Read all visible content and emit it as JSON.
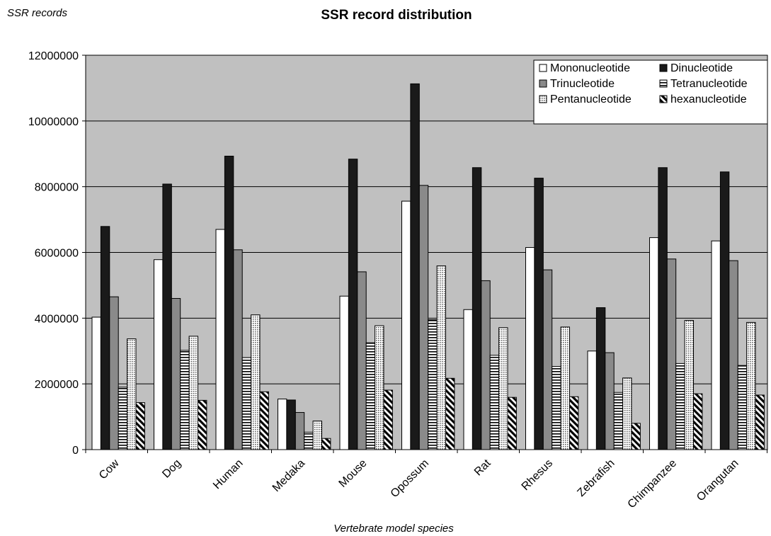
{
  "chart_data": {
    "type": "bar",
    "title": "SSR record distribution",
    "ylabel": "SSR records",
    "xlabel": "Vertebrate model species",
    "ylim": [
      0,
      12000000
    ],
    "yticks": [
      0,
      2000000,
      4000000,
      6000000,
      8000000,
      10000000,
      12000000
    ],
    "grid": true,
    "legend_position": "top-right",
    "categories": [
      "Cow",
      "Dog",
      "Human",
      "Medaka",
      "Mouse",
      "Opossum",
      "Rat",
      "Rhesus",
      "Zebrafish",
      "Chimpanzee",
      "Orangutan"
    ],
    "series": [
      {
        "name": "Mononucleotide",
        "fill": "white",
        "values": [
          4030000,
          5780000,
          6700000,
          1540000,
          4670000,
          7560000,
          4260000,
          6150000,
          3000000,
          6450000,
          6350000
        ]
      },
      {
        "name": "Dinucleotide",
        "fill": "black",
        "values": [
          6790000,
          8080000,
          8930000,
          1510000,
          8840000,
          11130000,
          8580000,
          8260000,
          4320000,
          8580000,
          8450000
        ]
      },
      {
        "name": "Trinucleotide",
        "fill": "gray",
        "values": [
          4650000,
          4600000,
          6080000,
          1130000,
          5410000,
          8040000,
          5140000,
          5470000,
          2950000,
          5800000,
          5750000
        ]
      },
      {
        "name": "Tetranucleotide",
        "fill": "hlines",
        "values": [
          1900000,
          3020000,
          2800000,
          530000,
          3250000,
          3950000,
          2870000,
          2530000,
          1740000,
          2620000,
          2560000
        ]
      },
      {
        "name": "Pentanucleotide",
        "fill": "dots",
        "values": [
          3370000,
          3450000,
          4100000,
          870000,
          3770000,
          5590000,
          3710000,
          3730000,
          2180000,
          3930000,
          3870000
        ]
      },
      {
        "name": "hexanucleotide",
        "fill": "diag",
        "values": [
          1430000,
          1500000,
          1760000,
          340000,
          1810000,
          2170000,
          1590000,
          1610000,
          800000,
          1700000,
          1660000
        ]
      }
    ],
    "colors": {
      "plot_bg": "#c0c0c0",
      "gray_bar": "#8a8a8a",
      "black_bar": "#1a1a1a"
    }
  }
}
